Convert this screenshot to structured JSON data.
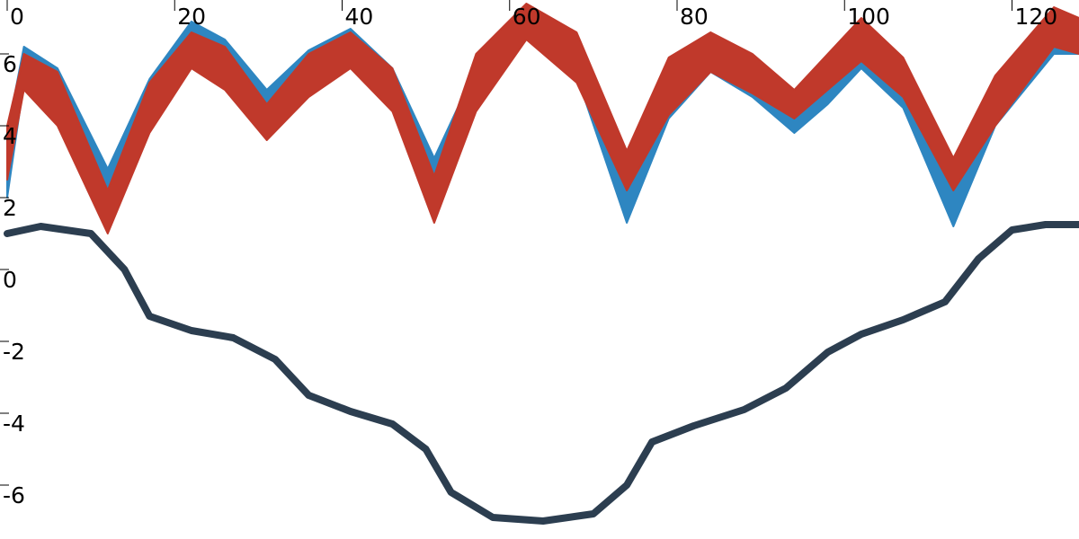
{
  "chart_data": {
    "type": "line",
    "xlim": [
      0,
      128
    ],
    "ylim": [
      -7.5,
      7.5
    ],
    "xticks": [
      0,
      20,
      40,
      60,
      80,
      100,
      120
    ],
    "yticks": [
      -6,
      -4,
      -2,
      0,
      2,
      4,
      6
    ],
    "series": [
      {
        "kind": "band",
        "color": "#2e86c1",
        "x": [
          0,
          2,
          6,
          12,
          17,
          22,
          26,
          31,
          36,
          41,
          46,
          51,
          56,
          62,
          68,
          74,
          79,
          84,
          89,
          94,
          98,
          102,
          107,
          113,
          118,
          125,
          128
        ],
        "lower": [
          2.0,
          5.2,
          4.3,
          2.0,
          4.3,
          6.0,
          5.5,
          4.3,
          5.2,
          5.8,
          4.7,
          2.3,
          4.6,
          6.6,
          5.4,
          1.3,
          4.2,
          5.5,
          4.8,
          3.8,
          4.6,
          5.6,
          4.5,
          1.2,
          4.0,
          6.0,
          6.0
        ],
        "upper": [
          3.8,
          6.2,
          5.6,
          2.8,
          5.3,
          6.9,
          6.4,
          5.0,
          6.1,
          6.7,
          5.6,
          3.1,
          5.6,
          7.2,
          6.2,
          3.1,
          5.1,
          5.8,
          5.0,
          4.4,
          5.2,
          6.0,
          5.0,
          3.1,
          5.0,
          6.8,
          6.5
        ]
      },
      {
        "kind": "band",
        "color": "#c0392b",
        "x": [
          0,
          2,
          6,
          12,
          17,
          22,
          26,
          31,
          36,
          41,
          46,
          51,
          56,
          62,
          68,
          74,
          79,
          84,
          89,
          94,
          98,
          102,
          107,
          113,
          118,
          125,
          128
        ],
        "lower": [
          2.5,
          5.0,
          4.0,
          1.0,
          3.8,
          5.6,
          5.0,
          3.6,
          4.8,
          5.6,
          4.4,
          1.3,
          4.4,
          6.4,
          5.2,
          2.2,
          4.3,
          5.5,
          4.9,
          4.2,
          5.0,
          5.8,
          4.8,
          2.2,
          4.0,
          6.2,
          6.0
        ],
        "upper": [
          4.0,
          6.0,
          5.5,
          2.2,
          5.2,
          6.6,
          6.2,
          4.6,
          6.0,
          6.6,
          5.6,
          2.6,
          6.0,
          7.4,
          6.6,
          3.3,
          5.9,
          6.6,
          6.0,
          5.0,
          6.0,
          7.0,
          5.9,
          3.1,
          5.4,
          7.3,
          7.0
        ]
      },
      {
        "kind": "line",
        "color": "#2c3e50",
        "x": [
          0,
          4,
          10,
          14,
          17,
          22,
          27,
          32,
          36,
          41,
          46,
          50,
          53,
          58,
          64,
          70,
          74,
          77,
          82,
          88,
          93,
          98,
          102,
          107,
          112,
          116,
          120,
          124,
          128
        ],
        "values": [
          1.0,
          1.2,
          1.0,
          0,
          -1.3,
          -1.7,
          -1.9,
          -2.5,
          -3.5,
          -3.95,
          -4.3,
          -5.0,
          -6.2,
          -6.9,
          -7.0,
          -6.8,
          -6.0,
          -4.8,
          -4.35,
          -3.9,
          -3.3,
          -2.3,
          -1.8,
          -1.4,
          -0.9,
          0.3,
          1.1,
          1.25,
          1.25
        ]
      }
    ]
  }
}
